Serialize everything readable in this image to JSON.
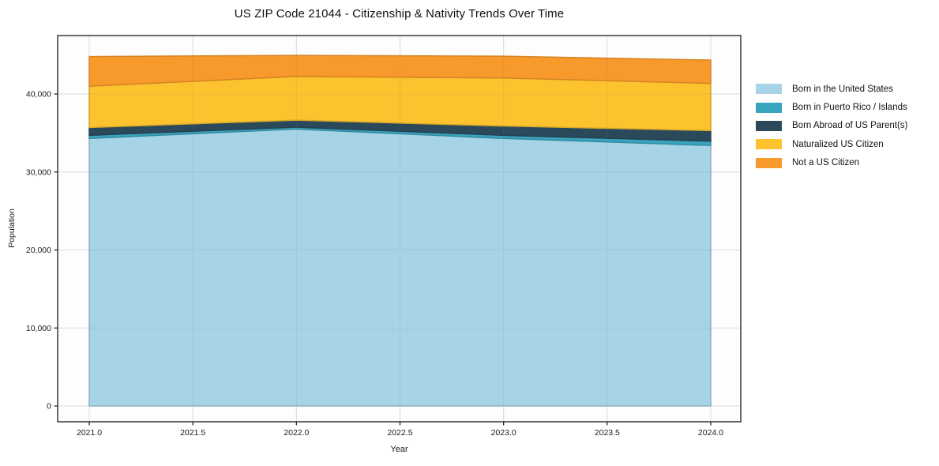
{
  "chart_data": {
    "type": "area",
    "stacked": true,
    "title": "US ZIP Code 21044 - Citizenship & Nativity Trends Over Time",
    "xlabel": "Year",
    "ylabel": "Population",
    "x": [
      2021.0,
      2022.0,
      2023.0,
      2024.0
    ],
    "series": [
      {
        "name": "Born in the United States",
        "color": "#a6d3e6",
        "values": [
          34300,
          35500,
          34300,
          33400
        ]
      },
      {
        "name": "Born in Puerto Rico / Islands",
        "color": "#3aa3bd",
        "values": [
          400,
          250,
          400,
          550
        ]
      },
      {
        "name": "Born Abroad of US Parent(s)",
        "color": "#2a4a5c",
        "values": [
          1000,
          900,
          1200,
          1350
        ]
      },
      {
        "name": "Naturalized US Citizen",
        "color": "#fdc32f",
        "values": [
          5300,
          5600,
          6150,
          6050
        ]
      },
      {
        "name": "Not a US Citizen",
        "color": "#f8992b",
        "values": [
          3800,
          2700,
          2800,
          3000
        ]
      }
    ],
    "stack_totals": [
      44800,
      44950,
      44850,
      44350
    ],
    "x_ticks": {
      "values": [
        2021.0,
        2021.5,
        2022.0,
        2022.5,
        2023.0,
        2023.5,
        2024.0
      ],
      "labels": [
        "2021.0",
        "2021.5",
        "2022.0",
        "2022.5",
        "2023.0",
        "2023.5",
        "2024.0"
      ]
    },
    "y_ticks": {
      "values": [
        0,
        10000,
        20000,
        30000,
        40000
      ],
      "labels": [
        "0",
        "10,000",
        "20,000",
        "30,000",
        "40,000"
      ]
    },
    "xlim": [
      2020.84,
      2024.14
    ],
    "ylim": [
      -1900,
      47500
    ],
    "grid": true,
    "legend_position": "right",
    "colors": {
      "spine": "#1a1a1a",
      "tick_label": "#1a1a1a",
      "gridline": "#808080"
    }
  }
}
